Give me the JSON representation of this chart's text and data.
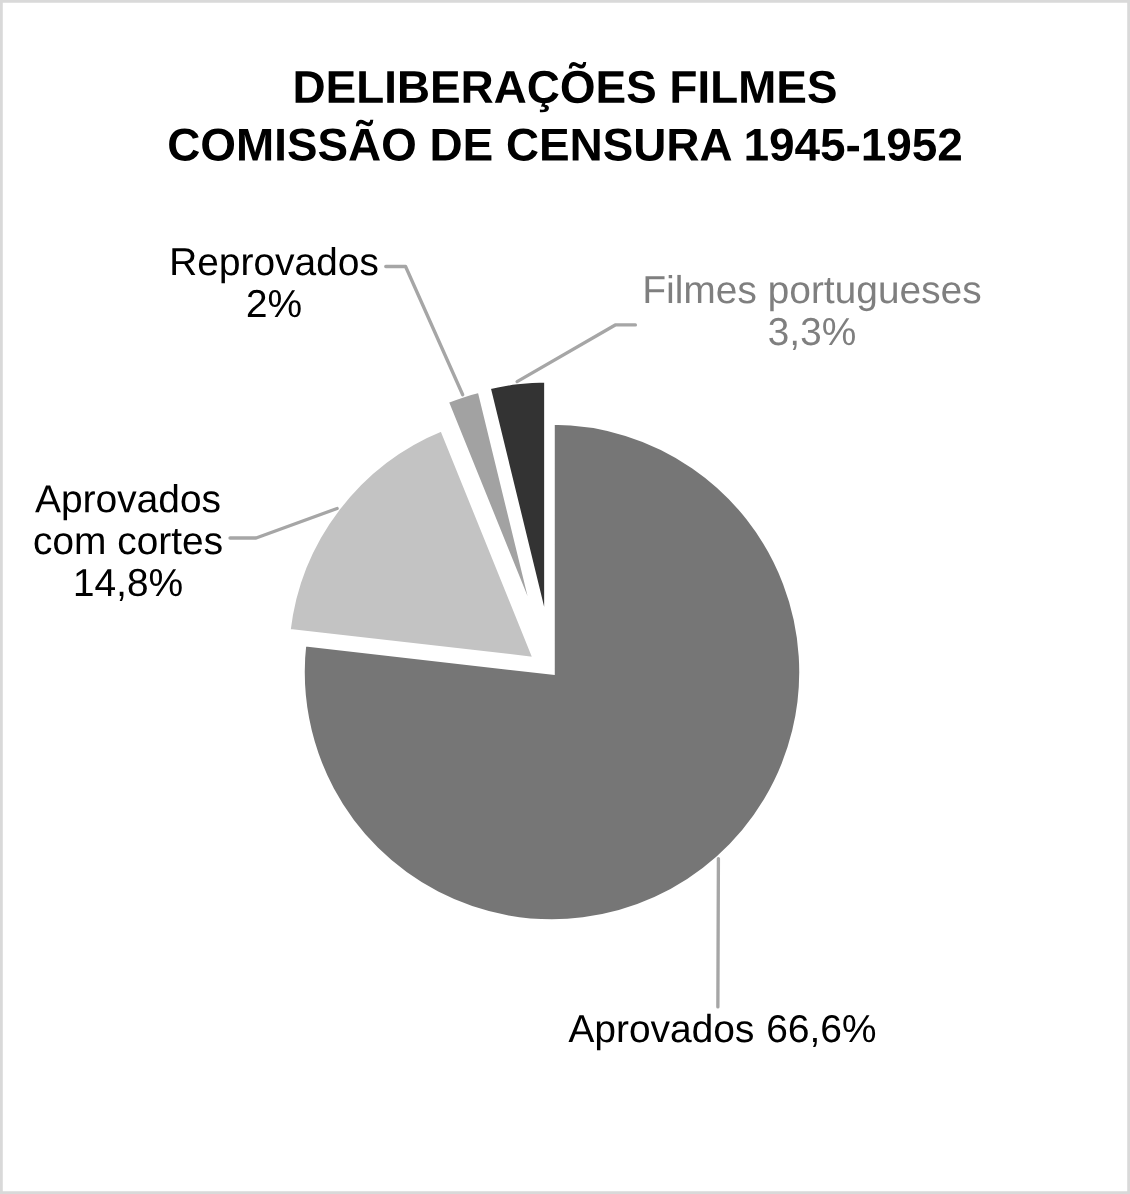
{
  "chart_data": {
    "type": "pie",
    "title": "DELIBERAÇÕES FILMES\nCOMISSÃO DE CENSURA 1945-1952",
    "categories": [
      "Aprovados",
      "Aprovados com cortes",
      "Reprovados",
      "Filmes portugueses"
    ],
    "values": [
      66.6,
      14.8,
      2,
      3.3
    ],
    "value_labels": [
      "66,6%",
      "14,8%",
      "2%",
      "3,3%"
    ],
    "colors": [
      "#767676",
      "#c3c3c3",
      "#a2a2a2",
      "#333333"
    ]
  }
}
